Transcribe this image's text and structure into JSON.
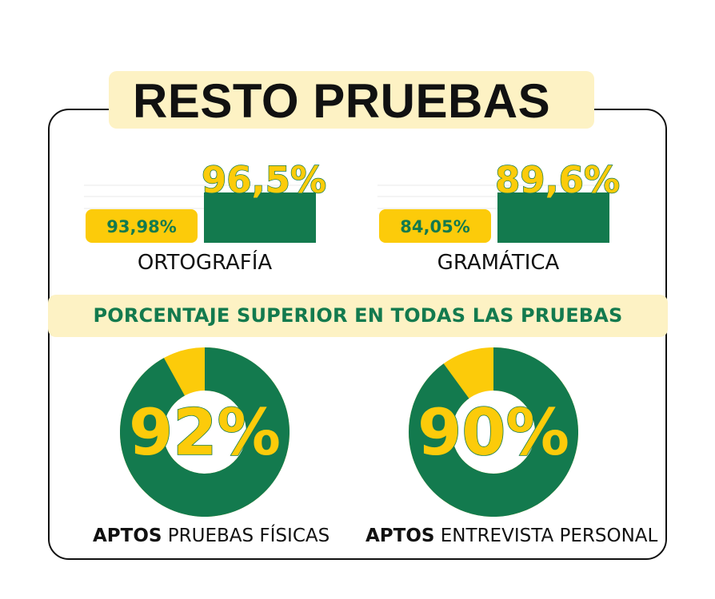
{
  "title": "RESTO PRUEBAS",
  "banner": "PORCENTAJE SUPERIOR EN TODAS LAS PRUEBAS",
  "colors": {
    "green": "#137a4e",
    "yellow": "#fccb0a",
    "cream": "#fdf2c4",
    "text": "#111111"
  },
  "chart_data": [
    {
      "type": "bar",
      "categories": [
        "ORTOGRAFÍA"
      ],
      "series": [
        {
          "values": [
            93.98
          ]
        },
        {
          "values": [
            96.5
          ]
        }
      ],
      "value_labels": [
        "93,98%",
        "96,5%"
      ],
      "label": "ORTOGRAFÍA"
    },
    {
      "type": "bar",
      "categories": [
        "GRAMÁTICA"
      ],
      "series": [
        {
          "values": [
            84.05
          ]
        },
        {
          "values": [
            89.6
          ]
        }
      ],
      "value_labels": [
        "84,05%",
        "89,6%"
      ],
      "label": "GRAMÁTICA"
    },
    {
      "type": "pie",
      "values": [
        92,
        8
      ],
      "center_label": "92%",
      "caption_bold": "APTOS",
      "caption_rest": " PRUEBAS FÍSICAS"
    },
    {
      "type": "pie",
      "values": [
        90,
        10
      ],
      "center_label": "90%",
      "caption_bold": "APTOS",
      "caption_rest": " ENTREVISTA PERSONAL"
    }
  ]
}
